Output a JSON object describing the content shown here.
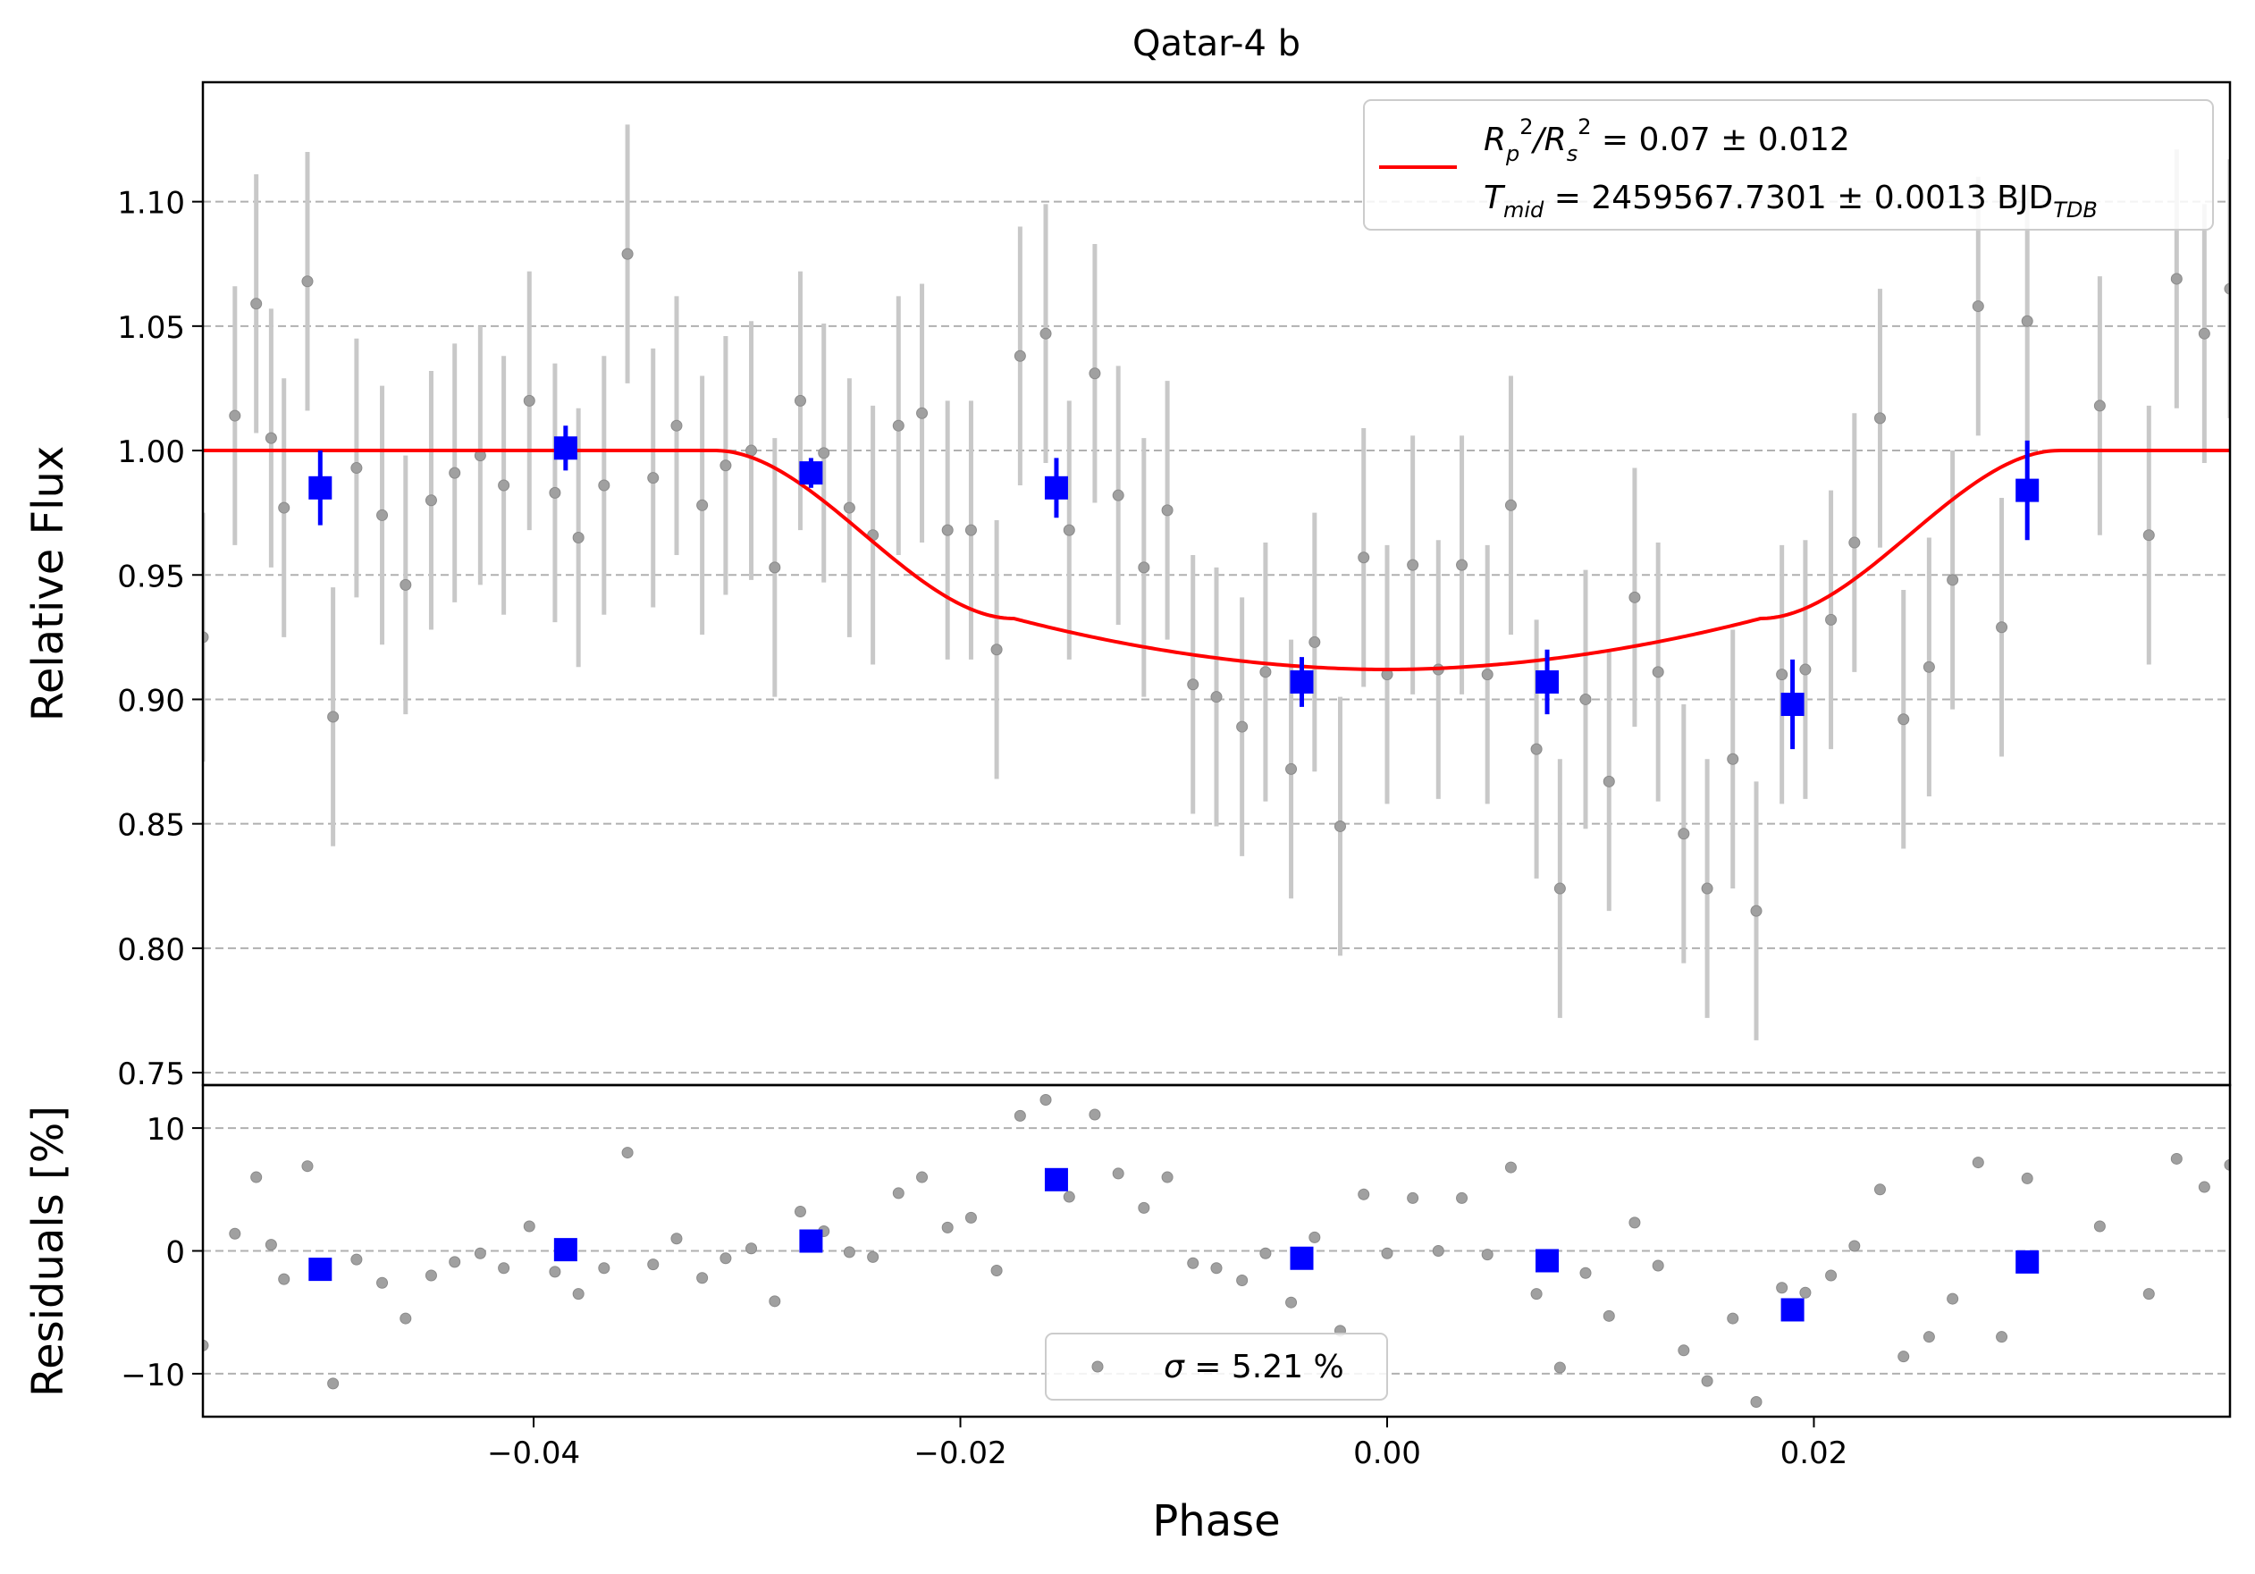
{
  "chart_data": [
    {
      "panel": "top",
      "type": "scatter",
      "title": "Qatar-4 b",
      "xlabel": "",
      "ylabel": "Relative Flux",
      "xlim": [
        -0.0555,
        0.0395
      ],
      "ylim": [
        0.745,
        1.148
      ],
      "yticks": [
        0.75,
        0.8,
        0.85,
        0.9,
        0.95,
        1.0,
        1.05,
        1.1
      ],
      "ytick_labels": [
        "0.75",
        "0.80",
        "0.85",
        "0.90",
        "0.95",
        "1.00",
        "1.05",
        "1.10"
      ],
      "grid": "horizontal dashed",
      "legend": {
        "placement": "top-right",
        "line_color": "#ff0000",
        "line1": {
          "main": "R",
          "sub1": "p",
          "sup1": "2",
          "slash": "/R",
          "sub2": "s",
          "sup2": "2",
          "rest": " = 0.07 ± 0.012"
        },
        "line2": {
          "main": "T",
          "sub1": "mid",
          "rest": " = 2459567.7301 ± 0.0013 BJD",
          "sub2": "TDB"
        }
      },
      "raw_points": [
        [
          -0.0555,
          0.925,
          0.05
        ],
        [
          -0.054,
          1.014,
          0.052
        ],
        [
          -0.053,
          1.059,
          0.052
        ],
        [
          -0.0523,
          1.005,
          0.052
        ],
        [
          -0.0517,
          0.977,
          0.052
        ],
        [
          -0.0506,
          1.068,
          0.052
        ],
        [
          -0.0494,
          0.893,
          0.052
        ],
        [
          -0.0483,
          0.993,
          0.052
        ],
        [
          -0.0471,
          0.974,
          0.052
        ],
        [
          -0.046,
          0.946,
          0.052
        ],
        [
          -0.0448,
          0.98,
          0.052
        ],
        [
          -0.0437,
          0.991,
          0.052
        ],
        [
          -0.0425,
          0.998,
          0.052
        ],
        [
          -0.0414,
          0.986,
          0.052
        ],
        [
          -0.0402,
          1.02,
          0.052
        ],
        [
          -0.039,
          0.983,
          0.052
        ],
        [
          -0.0379,
          0.965,
          0.052
        ],
        [
          -0.0367,
          0.986,
          0.052
        ],
        [
          -0.0356,
          1.079,
          0.052
        ],
        [
          -0.0344,
          0.989,
          0.052
        ],
        [
          -0.0333,
          1.01,
          0.052
        ],
        [
          -0.0321,
          0.978,
          0.052
        ],
        [
          -0.031,
          0.994,
          0.052
        ],
        [
          -0.0298,
          1.0,
          0.052
        ],
        [
          -0.0287,
          0.953,
          0.052
        ],
        [
          -0.0275,
          1.02,
          0.052
        ],
        [
          -0.0264,
          0.999,
          0.052
        ],
        [
          -0.0252,
          0.977,
          0.052
        ],
        [
          -0.0241,
          0.966,
          0.052
        ],
        [
          -0.0229,
          1.01,
          0.052
        ],
        [
          -0.0218,
          1.015,
          0.052
        ],
        [
          -0.0206,
          0.968,
          0.052
        ],
        [
          -0.0195,
          0.968,
          0.052
        ],
        [
          -0.0183,
          0.92,
          0.052
        ],
        [
          -0.0172,
          1.038,
          0.052
        ],
        [
          -0.016,
          1.047,
          0.052
        ],
        [
          -0.0149,
          0.968,
          0.052
        ],
        [
          -0.0137,
          1.031,
          0.052
        ],
        [
          -0.0126,
          0.982,
          0.052
        ],
        [
          -0.0114,
          0.953,
          0.052
        ],
        [
          -0.0103,
          0.976,
          0.052
        ],
        [
          -0.0091,
          0.906,
          0.052
        ],
        [
          -0.008,
          0.901,
          0.052
        ],
        [
          -0.0068,
          0.889,
          0.052
        ],
        [
          -0.0057,
          0.911,
          0.052
        ],
        [
          -0.0045,
          0.872,
          0.052
        ],
        [
          -0.0034,
          0.923,
          0.052
        ],
        [
          -0.0022,
          0.849,
          0.052
        ],
        [
          -0.0011,
          0.957,
          0.052
        ],
        [
          0.0,
          0.91,
          0.052
        ],
        [
          0.0012,
          0.954,
          0.052
        ],
        [
          0.0024,
          0.912,
          0.052
        ],
        [
          0.0035,
          0.954,
          0.052
        ],
        [
          0.0047,
          0.91,
          0.052
        ],
        [
          0.0058,
          0.978,
          0.052
        ],
        [
          0.007,
          0.88,
          0.052
        ],
        [
          0.0081,
          0.824,
          0.052
        ],
        [
          0.0093,
          0.9,
          0.052
        ],
        [
          0.0104,
          0.867,
          0.052
        ],
        [
          0.0116,
          0.941,
          0.052
        ],
        [
          0.0127,
          0.911,
          0.052
        ],
        [
          0.0139,
          0.846,
          0.052
        ],
        [
          0.015,
          0.824,
          0.052
        ],
        [
          0.0162,
          0.876,
          0.052
        ],
        [
          0.0173,
          0.815,
          0.052
        ],
        [
          0.0185,
          0.91,
          0.052
        ],
        [
          0.0196,
          0.912,
          0.052
        ],
        [
          0.0208,
          0.932,
          0.052
        ],
        [
          0.0219,
          0.963,
          0.052
        ],
        [
          0.0231,
          1.013,
          0.052
        ],
        [
          0.0242,
          0.892,
          0.052
        ],
        [
          0.0254,
          0.913,
          0.052
        ],
        [
          0.0265,
          0.948,
          0.052
        ],
        [
          0.0277,
          1.058,
          0.052
        ],
        [
          0.0288,
          0.929,
          0.052
        ],
        [
          0.03,
          1.052,
          0.052
        ],
        [
          0.0334,
          1.018,
          0.052
        ],
        [
          0.0357,
          0.966,
          0.052
        ],
        [
          0.037,
          1.069,
          0.052
        ],
        [
          0.0383,
          1.047,
          0.052
        ],
        [
          0.0395,
          1.065,
          0.052
        ]
      ],
      "binned_points": [
        [
          -0.05,
          0.985,
          0.015
        ],
        [
          -0.0385,
          1.001,
          0.009
        ],
        [
          -0.027,
          0.991,
          0.006
        ],
        [
          -0.0155,
          0.985,
          0.012
        ],
        [
          -0.004,
          0.907,
          0.01
        ],
        [
          0.0075,
          0.907,
          0.013
        ],
        [
          0.019,
          0.898,
          0.018
        ],
        [
          0.03,
          0.984,
          0.02
        ]
      ],
      "model": {
        "name": "transit model",
        "color": "#ff0000",
        "baseline": 1.0,
        "depth": 0.088,
        "t1": 0.0315,
        "t2": 0.0175,
        "ingress_knee": 0.9325
      }
    },
    {
      "panel": "bottom",
      "type": "scatter",
      "xlabel": "Phase",
      "ylabel": "Residuals [%]",
      "xlim": [
        -0.0555,
        0.0395
      ],
      "ylim": [
        -13.5,
        13.5
      ],
      "yticks": [
        -10,
        0,
        10
      ],
      "ytick_labels": [
        "−10",
        "0",
        "10"
      ],
      "xticks": [
        -0.04,
        -0.02,
        0.0,
        0.02
      ],
      "xtick_labels": [
        "−0.04",
        "−0.02",
        "0.00",
        "0.02"
      ],
      "grid": "horizontal dashed",
      "legend": {
        "placement": "lower-center",
        "symbol": "σ",
        "text": " = 5.21 %"
      },
      "raw_points": [
        [
          -0.0555,
          -7.7
        ],
        [
          -0.054,
          1.4
        ],
        [
          -0.053,
          6.0
        ],
        [
          -0.0523,
          0.5
        ],
        [
          -0.0517,
          -2.3
        ],
        [
          -0.0506,
          6.9
        ],
        [
          -0.0494,
          -10.8
        ],
        [
          -0.0483,
          -0.7
        ],
        [
          -0.0471,
          -2.6
        ],
        [
          -0.046,
          -5.5
        ],
        [
          -0.0448,
          -2.0
        ],
        [
          -0.0437,
          -0.9
        ],
        [
          -0.0425,
          -0.2
        ],
        [
          -0.0414,
          -1.4
        ],
        [
          -0.0402,
          2.0
        ],
        [
          -0.039,
          -1.7
        ],
        [
          -0.0379,
          -3.5
        ],
        [
          -0.0367,
          -1.4
        ],
        [
          -0.0356,
          8.0
        ],
        [
          -0.0344,
          -1.1
        ],
        [
          -0.0333,
          1.0
        ],
        [
          -0.0321,
          -2.2
        ],
        [
          -0.031,
          -0.6
        ],
        [
          -0.0298,
          0.2
        ],
        [
          -0.0287,
          -4.1
        ],
        [
          -0.0275,
          3.2
        ],
        [
          -0.0264,
          1.6
        ],
        [
          -0.0252,
          -0.1
        ],
        [
          -0.0241,
          -0.5
        ],
        [
          -0.0229,
          4.7
        ],
        [
          -0.0218,
          6.0
        ],
        [
          -0.0206,
          1.9
        ],
        [
          -0.0195,
          2.7
        ],
        [
          -0.0183,
          -1.6
        ],
        [
          -0.0172,
          11.0
        ],
        [
          -0.016,
          12.3
        ],
        [
          -0.0149,
          4.4
        ],
        [
          -0.0137,
          11.1
        ],
        [
          -0.0126,
          6.3
        ],
        [
          -0.0114,
          3.5
        ],
        [
          -0.0103,
          6.0
        ],
        [
          -0.0091,
          -1.0
        ],
        [
          -0.008,
          -1.4
        ],
        [
          -0.0068,
          -2.4
        ],
        [
          -0.0057,
          -0.2
        ],
        [
          -0.0045,
          -4.2
        ],
        [
          -0.0034,
          1.1
        ],
        [
          -0.0022,
          -6.5
        ],
        [
          -0.0011,
          4.6
        ],
        [
          0.0,
          -0.2
        ],
        [
          0.0012,
          4.3
        ],
        [
          0.0024,
          0.0
        ],
        [
          0.0035,
          4.3
        ],
        [
          0.0047,
          -0.3
        ],
        [
          0.0058,
          6.8
        ],
        [
          0.007,
          -3.5
        ],
        [
          0.0081,
          -9.5
        ],
        [
          0.0093,
          -1.8
        ],
        [
          0.0104,
          -5.3
        ],
        [
          0.0116,
          2.3
        ],
        [
          0.0127,
          -1.2
        ],
        [
          0.0139,
          -8.1
        ],
        [
          0.015,
          -10.6
        ],
        [
          0.0162,
          -5.5
        ],
        [
          0.0173,
          -12.3
        ],
        [
          0.0185,
          -3.0
        ],
        [
          0.0196,
          -3.4
        ],
        [
          0.0208,
          -2.0
        ],
        [
          0.0219,
          0.4
        ],
        [
          0.0231,
          5.0
        ],
        [
          0.0242,
          -8.6
        ],
        [
          0.0254,
          -7.0
        ],
        [
          0.0265,
          -3.9
        ],
        [
          0.0277,
          7.2
        ],
        [
          0.0288,
          -7.0
        ],
        [
          0.03,
          5.9
        ],
        [
          0.0334,
          2.0
        ],
        [
          0.0357,
          -3.5
        ],
        [
          0.037,
          7.5
        ],
        [
          0.0383,
          5.2
        ],
        [
          0.0395,
          7.0
        ]
      ],
      "binned_points": [
        [
          -0.05,
          -1.5
        ],
        [
          -0.0385,
          0.1
        ],
        [
          -0.027,
          0.8
        ],
        [
          -0.0155,
          5.8
        ],
        [
          -0.004,
          -0.6
        ],
        [
          0.0075,
          -0.8
        ],
        [
          0.019,
          -4.8
        ],
        [
          0.03,
          -0.9
        ]
      ]
    }
  ]
}
